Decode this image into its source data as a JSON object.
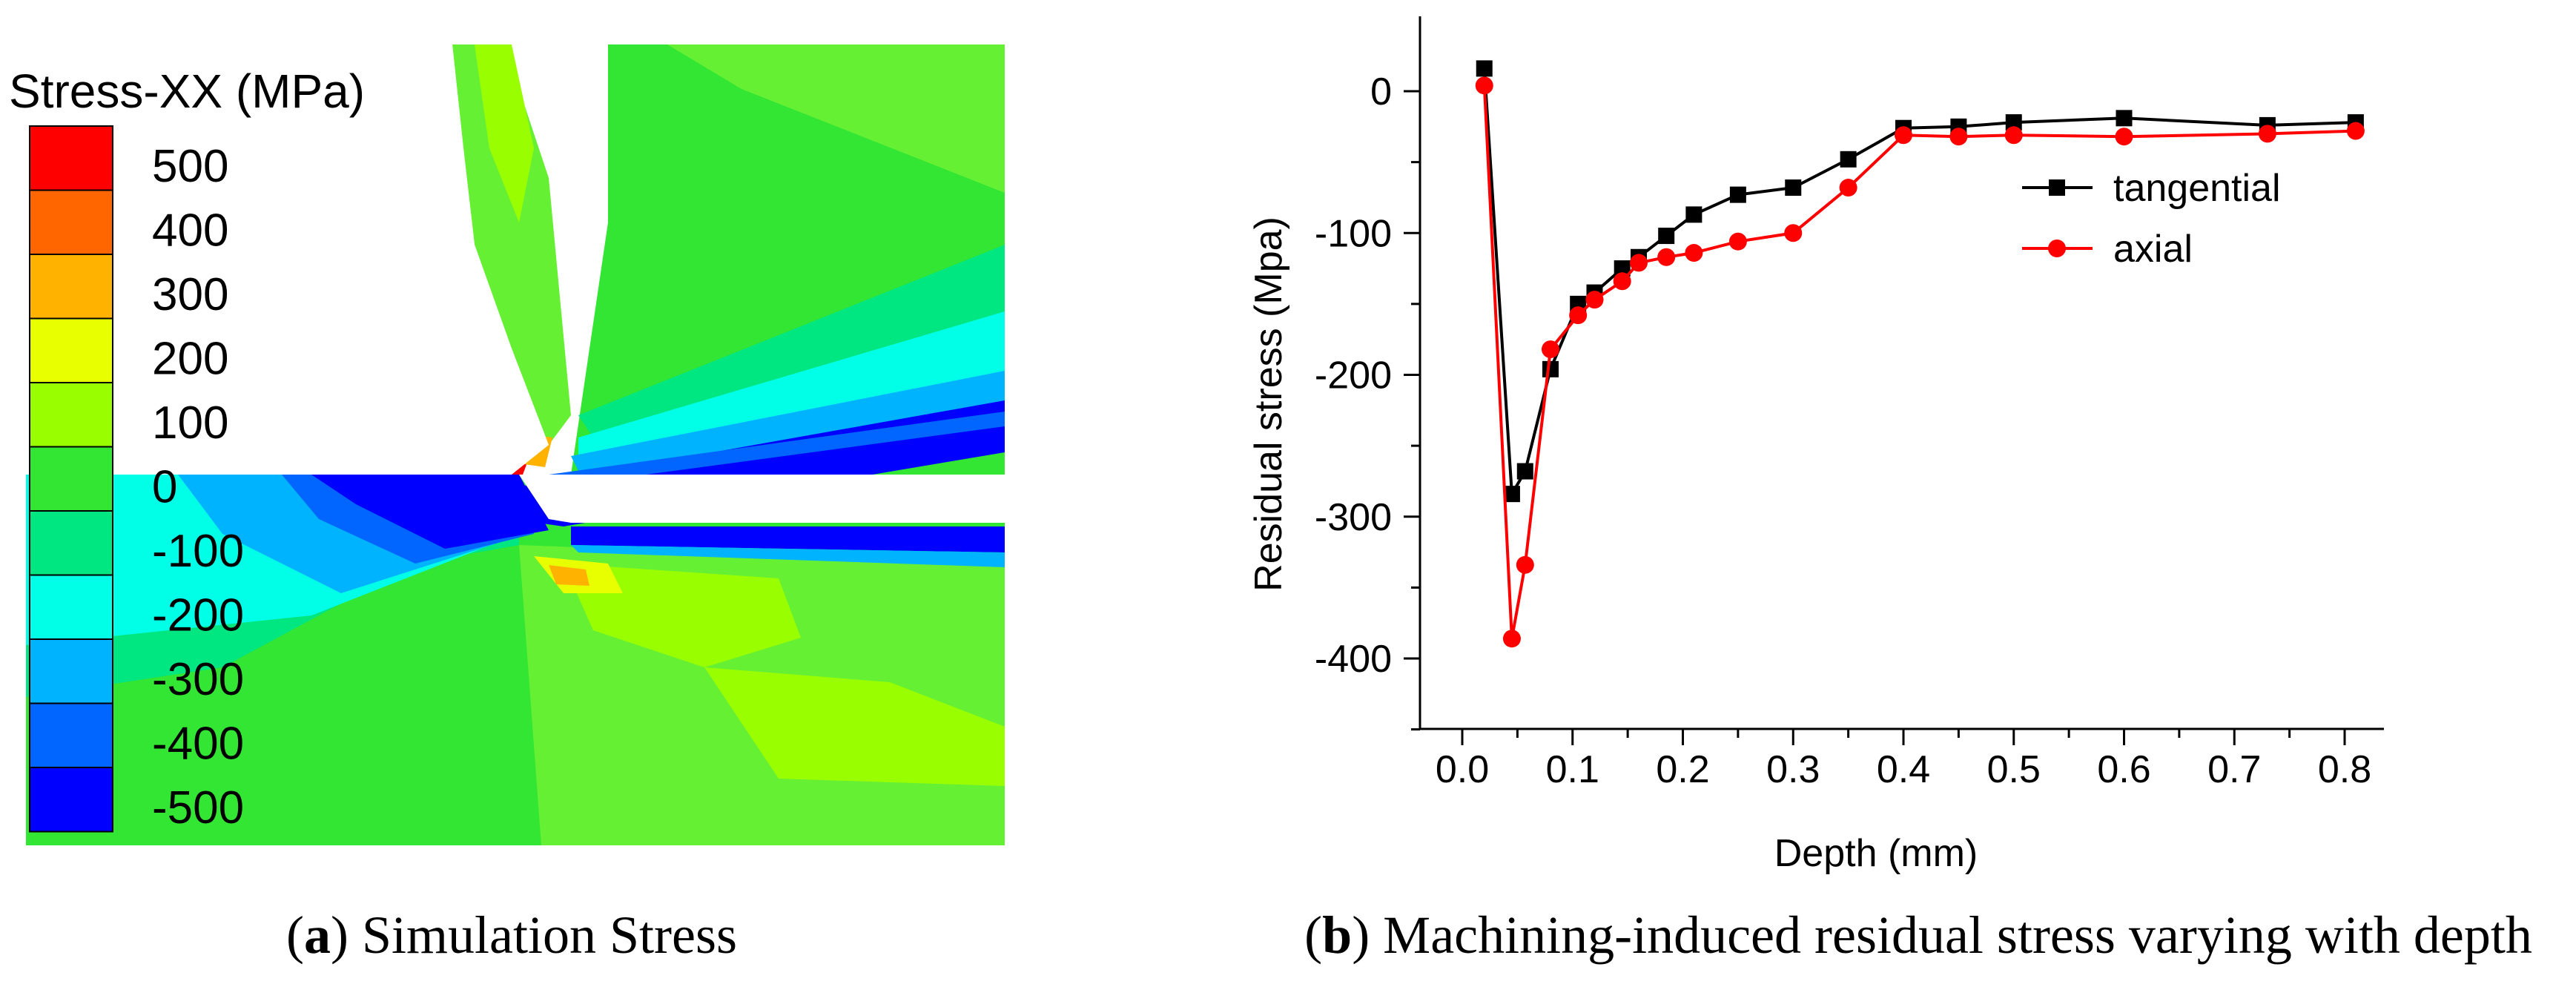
{
  "figure": {
    "panel_a": {
      "letter": "a",
      "caption": "Simulation Stress",
      "legend": {
        "title": "Stress-XX (MPa)",
        "levels": [
          "500",
          "400",
          "300",
          "200",
          "100",
          "0",
          "-100",
          "-200",
          "-300",
          "-400",
          "-500"
        ],
        "colors": [
          "#ff0000",
          "#ff6600",
          "#ffb300",
          "#e8ff00",
          "#99ff00",
          "#33e633",
          "#00e680",
          "#00ffe6",
          "#00b3ff",
          "#0066ff",
          "#0000ff"
        ]
      }
    },
    "panel_b": {
      "letter": "b",
      "caption": "Machining-induced residual stress varying with depth"
    }
  },
  "chart_data": {
    "type": "line",
    "title": "",
    "xlabel": "Depth (mm)",
    "ylabel": "Residual stress (Mpa)",
    "xlim": [
      -0.05,
      0.85
    ],
    "ylim": [
      -450,
      50
    ],
    "xticks": [
      0.0,
      0.1,
      0.2,
      0.3,
      0.4,
      0.5,
      0.6,
      0.7,
      0.8
    ],
    "xtick_labels": [
      "0.0",
      "0.1",
      "0.2",
      "0.3",
      "0.4",
      "0.5",
      "0.6",
      "0.7",
      "0.8"
    ],
    "yticks": [
      0,
      -100,
      -200,
      -300,
      -400
    ],
    "ytick_labels": [
      "0",
      "-100",
      "-200",
      "-300",
      "-400"
    ],
    "legend_position": "top-right",
    "series": [
      {
        "name": "tangential",
        "color": "#000000",
        "marker": "square",
        "x": [
          0.02,
          0.045,
          0.057,
          0.08,
          0.105,
          0.12,
          0.145,
          0.16,
          0.185,
          0.21,
          0.25,
          0.3,
          0.35,
          0.4,
          0.45,
          0.5,
          0.6,
          0.73,
          0.81
        ],
        "y": [
          16,
          -284,
          -268,
          -196,
          -150,
          -142,
          -125,
          -117,
          -102,
          -87,
          -73,
          -68,
          -48,
          -26,
          -25,
          -22,
          -19,
          -24,
          -22
        ]
      },
      {
        "name": "axial",
        "color": "#ff0000",
        "marker": "circle",
        "x": [
          0.02,
          0.045,
          0.057,
          0.08,
          0.105,
          0.12,
          0.145,
          0.16,
          0.185,
          0.21,
          0.25,
          0.3,
          0.35,
          0.4,
          0.45,
          0.5,
          0.6,
          0.73,
          0.81
        ],
        "y": [
          4,
          -386,
          -334,
          -182,
          -158,
          -147,
          -134,
          -121,
          -117,
          -114,
          -106,
          -100,
          -68,
          -31,
          -32,
          -31,
          -32,
          -30,
          -28
        ]
      }
    ]
  }
}
